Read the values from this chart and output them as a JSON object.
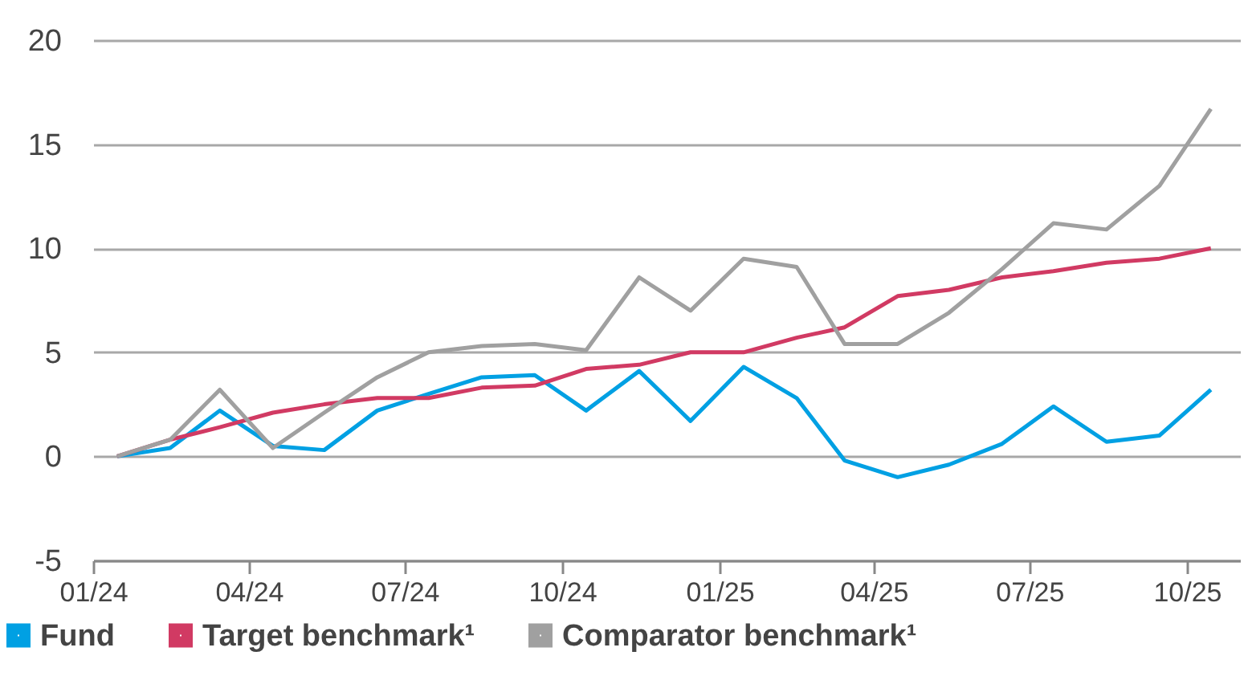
{
  "chart_data": {
    "type": "line",
    "x": [
      "2024-01-15",
      "2024-02-15",
      "2024-03-15",
      "2024-04-15",
      "2024-05-15",
      "2024-06-15",
      "2024-07-15",
      "2024-08-15",
      "2024-09-15",
      "2024-10-15",
      "2024-11-15",
      "2024-12-15",
      "2025-01-15",
      "2025-02-15",
      "2025-03-15",
      "2025-04-15",
      "2025-05-15",
      "2025-06-15",
      "2025-07-15",
      "2025-08-15",
      "2025-09-15",
      "2025-10-15"
    ],
    "series": [
      {
        "name": "Fund",
        "color": "#00a0e3",
        "values": [
          0,
          0.4,
          2.2,
          0.5,
          0.3,
          2.2,
          3.0,
          3.8,
          3.9,
          2.2,
          4.1,
          1.7,
          4.3,
          2.8,
          -0.2,
          -1.0,
          -0.4,
          0.6,
          2.4,
          0.7,
          1.0,
          3.2
        ]
      },
      {
        "name": "Target benchmark¹",
        "color": "#d13a63",
        "values": [
          0,
          0.8,
          1.4,
          2.1,
          2.5,
          2.8,
          2.8,
          3.3,
          3.4,
          4.2,
          4.4,
          5.0,
          5.0,
          5.7,
          6.2,
          7.7,
          8.0,
          8.6,
          8.9,
          9.3,
          9.5,
          10.0
        ]
      },
      {
        "name": "Comparator benchmark¹",
        "color": "#a0a0a0",
        "values": [
          0,
          0.8,
          3.2,
          0.4,
          2.1,
          3.8,
          5.0,
          5.3,
          5.4,
          5.1,
          8.6,
          7.0,
          9.5,
          9.1,
          5.4,
          5.4,
          6.9,
          9.0,
          11.2,
          10.9,
          13.0,
          16.7
        ]
      }
    ],
    "xlim": [
      "2024-01-01",
      "2025-11-01"
    ],
    "xticks": [
      {
        "value": "2024-01-01",
        "label": "01/24"
      },
      {
        "value": "2024-04-01",
        "label": "04/24"
      },
      {
        "value": "2024-07-01",
        "label": "07/24"
      },
      {
        "value": "2024-10-01",
        "label": "10/24"
      },
      {
        "value": "2025-01-01",
        "label": "01/25"
      },
      {
        "value": "2025-04-01",
        "label": "04/25"
      },
      {
        "value": "2025-07-01",
        "label": "07/25"
      },
      {
        "value": "2025-10-01",
        "label": "10/25"
      }
    ],
    "ylim": [
      -5,
      20
    ],
    "yticks": [
      -5,
      0,
      5,
      10,
      15,
      20
    ],
    "grid": "y",
    "legend": "bottom",
    "marker": "none",
    "line_style": "solid"
  }
}
